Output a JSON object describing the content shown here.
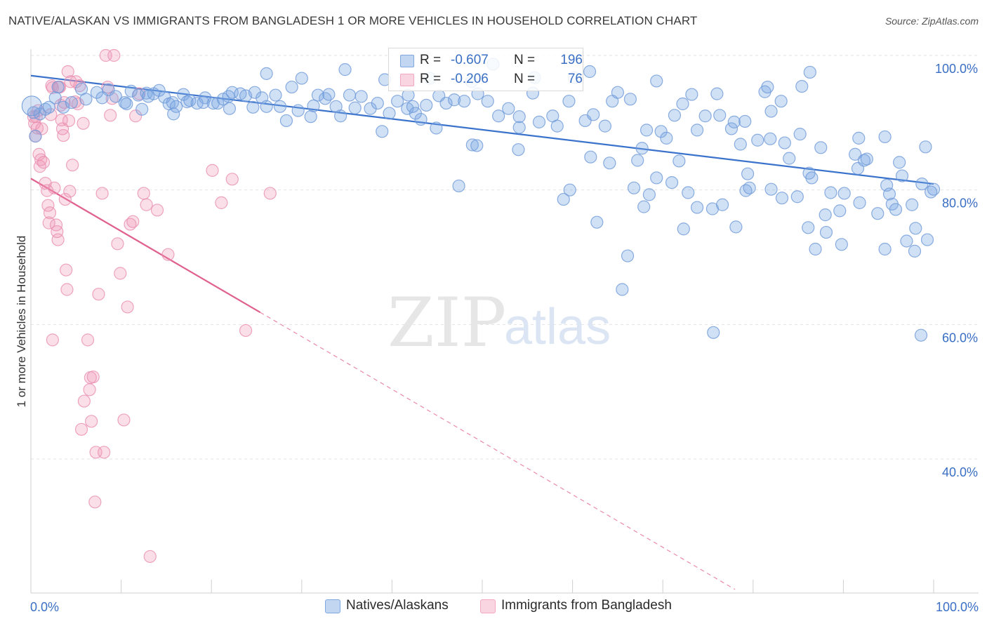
{
  "title": "NATIVE/ALASKAN VS IMMIGRANTS FROM BANGLADESH 1 OR MORE VEHICLES IN HOUSEHOLD CORRELATION CHART",
  "source": "Source: ZipAtlas.com",
  "watermark": {
    "zip": "ZIP",
    "atlas": "atlas"
  },
  "legend_stats": {
    "rows": [
      {
        "r_label": "R =",
        "r_value": "-0.607",
        "n_label": "N =",
        "n_value": "196",
        "color": "#7fa8e0"
      },
      {
        "r_label": "R =",
        "r_value": "-0.206",
        "n_label": "N =",
        "n_value": "76",
        "color": "#f2a6bf"
      }
    ]
  },
  "colors": {
    "blue": "#5b8fd6",
    "pink": "#e87fa5",
    "blue_fill": "rgba(120,165,225,0.35)",
    "pink_fill": "rgba(240,150,180,0.30)",
    "grid": "#e3e3e3",
    "tick_label": "#3a6fc4"
  },
  "chart_data": {
    "type": "scatter",
    "title": "NATIVE/ALASKAN VS IMMIGRANTS FROM BANGLADESH 1 OR MORE VEHICLES IN HOUSEHOLD CORRELATION CHART",
    "xlabel": "",
    "ylabel": "1 or more Vehicles in Household",
    "xlim": [
      0,
      100
    ],
    "ylim": [
      20,
      101
    ],
    "x_tick_labels": [
      "0.0%",
      "100.0%"
    ],
    "y_ticks": [
      40,
      60,
      80,
      100
    ],
    "y_tick_labels": [
      "40.0%",
      "60.0%",
      "80.0%",
      "100.0%"
    ],
    "grid": true,
    "legend_position": "bottom",
    "series": [
      {
        "name": "Natives/Alaskans",
        "color": "#5b8fd6",
        "trend": {
          "x": [
            0,
            100
          ],
          "y": [
            97.0,
            80.9
          ]
        },
        "points": [
          [
            0.3,
            91.5
          ],
          [
            0.5,
            88.0
          ],
          [
            1.0,
            91.3
          ],
          [
            1.6,
            92.0
          ],
          [
            2.0,
            92.3
          ],
          [
            2.7,
            93.7
          ],
          [
            3.0,
            95.3
          ],
          [
            3.6,
            92.3
          ],
          [
            4.5,
            93.0
          ],
          [
            5.6,
            95.0
          ],
          [
            6.1,
            93.5
          ],
          [
            7.3,
            94.5
          ],
          [
            7.9,
            93.7
          ],
          [
            8.6,
            94.9
          ],
          [
            9.4,
            93.9
          ],
          [
            10.4,
            93.0
          ],
          [
            10.6,
            92.8
          ],
          [
            11.1,
            94.7
          ],
          [
            11.9,
            94.1
          ],
          [
            12.3,
            92.0
          ],
          [
            12.8,
            94.4
          ],
          [
            13.0,
            93.9
          ],
          [
            13.6,
            94.3
          ],
          [
            14.2,
            94.8
          ],
          [
            14.8,
            93.8
          ],
          [
            15.3,
            92.8
          ],
          [
            15.7,
            93.0
          ],
          [
            15.8,
            91.3
          ],
          [
            16.1,
            92.4
          ],
          [
            16.9,
            94.2
          ],
          [
            17.3,
            93.1
          ],
          [
            17.6,
            93.3
          ],
          [
            18.4,
            92.9
          ],
          [
            19.3,
            93.7
          ],
          [
            19.1,
            93.0
          ],
          [
            20.2,
            92.9
          ],
          [
            20.7,
            92.9
          ],
          [
            21.3,
            93.5
          ],
          [
            21.9,
            93.9
          ],
          [
            22.0,
            92.1
          ],
          [
            22.3,
            94.5
          ],
          [
            23.2,
            94.3
          ],
          [
            23.8,
            94.0
          ],
          [
            24.6,
            92.3
          ],
          [
            24.8,
            94.5
          ],
          [
            25.6,
            93.7
          ],
          [
            26.1,
            92.4
          ],
          [
            26.1,
            97.3
          ],
          [
            27.1,
            94.1
          ],
          [
            27.6,
            92.4
          ],
          [
            28.3,
            90.3
          ],
          [
            28.9,
            95.3
          ],
          [
            29.6,
            91.8
          ],
          [
            30.0,
            96.6
          ],
          [
            31.3,
            92.5
          ],
          [
            31.0,
            90.9
          ],
          [
            31.8,
            94.1
          ],
          [
            32.6,
            93.6
          ],
          [
            33.0,
            94.2
          ],
          [
            33.8,
            92.4
          ],
          [
            34.3,
            91.0
          ],
          [
            34.8,
            97.9
          ],
          [
            35.3,
            94.1
          ],
          [
            35.9,
            92.2
          ],
          [
            36.6,
            93.9
          ],
          [
            37.6,
            92.1
          ],
          [
            38.4,
            92.9
          ],
          [
            39.2,
            96.4
          ],
          [
            39.7,
            91.4
          ],
          [
            40.6,
            93.2
          ],
          [
            41.7,
            92.1
          ],
          [
            41.8,
            94.1
          ],
          [
            42.3,
            92.4
          ],
          [
            43.2,
            90.5
          ],
          [
            43.8,
            92.6
          ],
          [
            44.2,
            96.6
          ],
          [
            45.2,
            94.0
          ],
          [
            46.0,
            92.9
          ],
          [
            46.9,
            93.4
          ],
          [
            48.0,
            93.2
          ],
          [
            48.8,
            96.1
          ],
          [
            48.9,
            86.7
          ],
          [
            49.5,
            94.3
          ],
          [
            50.6,
            93.2
          ],
          [
            51.2,
            98.7
          ],
          [
            51.8,
            91.0
          ],
          [
            52.9,
            92.1
          ],
          [
            54.1,
            89.3
          ],
          [
            54.1,
            90.9
          ],
          [
            55.6,
            94.4
          ],
          [
            55.8,
            96.7
          ],
          [
            57.8,
            91.0
          ],
          [
            58.3,
            89.5
          ],
          [
            59.6,
            93.2
          ],
          [
            60.2,
            96.7
          ],
          [
            61.4,
            90.3
          ],
          [
            61.9,
            97.6
          ],
          [
            62.3,
            91.2
          ],
          [
            63.6,
            89.5
          ],
          [
            64.4,
            93.2
          ],
          [
            65.0,
            94.5
          ],
          [
            66.4,
            93.5
          ],
          [
            67.2,
            84.4
          ],
          [
            67.7,
            86.2
          ],
          [
            68.2,
            88.9
          ],
          [
            69.3,
            96.2
          ],
          [
            69.8,
            88.7
          ],
          [
            70.4,
            87.7
          ],
          [
            71.3,
            91.1
          ],
          [
            71.8,
            84.3
          ],
          [
            72.2,
            92.8
          ],
          [
            73.2,
            94.2
          ],
          [
            73.8,
            88.9
          ],
          [
            74.7,
            91.0
          ],
          [
            76.0,
            94.3
          ],
          [
            76.3,
            91.1
          ],
          [
            77.6,
            89.1
          ],
          [
            77.9,
            90.1
          ],
          [
            78.6,
            86.8
          ],
          [
            79.1,
            90.2
          ],
          [
            79.4,
            82.4
          ],
          [
            80.5,
            87.4
          ],
          [
            81.3,
            94.6
          ],
          [
            81.6,
            95.3
          ],
          [
            81.9,
            87.6
          ],
          [
            82.0,
            91.7
          ],
          [
            83.1,
            93.2
          ],
          [
            83.5,
            87.0
          ],
          [
            84.0,
            84.7
          ],
          [
            85.2,
            88.3
          ],
          [
            85.4,
            95.4
          ],
          [
            86.2,
            82.5
          ],
          [
            86.3,
            97.5
          ],
          [
            86.5,
            81.8
          ],
          [
            87.5,
            86.3
          ],
          [
            88.0,
            76.3
          ],
          [
            88.6,
            79.6
          ],
          [
            89.6,
            76.9
          ],
          [
            90.1,
            79.5
          ],
          [
            91.3,
            85.3
          ],
          [
            91.6,
            83.2
          ],
          [
            91.7,
            87.7
          ],
          [
            91.8,
            78.1
          ],
          [
            92.3,
            84.4
          ],
          [
            92.6,
            84.6
          ],
          [
            94.6,
            87.9
          ],
          [
            94.8,
            80.7
          ],
          [
            95.1,
            79.4
          ],
          [
            95.4,
            77.9
          ],
          [
            96.5,
            82.1
          ],
          [
            97.6,
            77.8
          ],
          [
            98.0,
            74.3
          ],
          [
            99.3,
            72.6
          ],
          [
            98.7,
            80.9
          ],
          [
            99.1,
            86.4
          ],
          [
            99.7,
            79.7
          ],
          [
            100.0,
            80.1
          ],
          [
            98.6,
            58.4
          ],
          [
            42.6,
            91.4
          ],
          [
            38.9,
            88.7
          ],
          [
            44.9,
            89.2
          ],
          [
            49.4,
            86.6
          ],
          [
            47.4,
            80.6
          ],
          [
            54.0,
            86.0
          ],
          [
            56.3,
            90.1
          ],
          [
            59.0,
            78.6
          ],
          [
            59.7,
            80.0
          ],
          [
            62.0,
            84.9
          ],
          [
            62.7,
            75.2
          ],
          [
            64.1,
            84.0
          ],
          [
            65.5,
            65.2
          ],
          [
            66.1,
            70.2
          ],
          [
            66.8,
            80.3
          ],
          [
            67.9,
            77.5
          ],
          [
            68.5,
            79.3
          ],
          [
            69.3,
            81.8
          ],
          [
            71.0,
            81.1
          ],
          [
            72.3,
            74.2
          ],
          [
            72.8,
            79.6
          ],
          [
            73.8,
            77.4
          ],
          [
            75.5,
            77.2
          ],
          [
            75.6,
            58.8
          ],
          [
            76.6,
            77.8
          ],
          [
            78.1,
            74.5
          ],
          [
            79.2,
            79.9
          ],
          [
            79.6,
            80.3
          ],
          [
            82.0,
            80.1
          ],
          [
            83.2,
            78.8
          ],
          [
            84.9,
            79.0
          ],
          [
            86.9,
            71.2
          ],
          [
            86.1,
            74.4
          ],
          [
            88.1,
            73.7
          ],
          [
            89.8,
            71.9
          ],
          [
            93.8,
            76.5
          ],
          [
            94.6,
            71.2
          ],
          [
            95.8,
            77.1
          ],
          [
            97.0,
            72.4
          ],
          [
            96.2,
            84.1
          ],
          [
            97.9,
            70.9
          ]
        ]
      },
      {
        "name": "Immigrants from Bangladesh",
        "color": "#e87fa5",
        "trend": {
          "x": [
            0,
            25.4
          ],
          "y": [
            81.7,
            61.8
          ]
        },
        "trend_extension": {
          "x": [
            25.4,
            78.0
          ],
          "y": [
            61.8,
            20.6
          ]
        },
        "points": [
          [
            0.3,
            90.9
          ],
          [
            0.4,
            89.9
          ],
          [
            0.5,
            88.0
          ],
          [
            0.6,
            90.9
          ],
          [
            0.7,
            89.2
          ],
          [
            0.8,
            91.8
          ],
          [
            0.9,
            85.3
          ],
          [
            1.0,
            83.5
          ],
          [
            1.1,
            84.5
          ],
          [
            1.2,
            89.1
          ],
          [
            1.4,
            84.1
          ],
          [
            1.6,
            81.0
          ],
          [
            1.8,
            79.9
          ],
          [
            1.9,
            77.7
          ],
          [
            2.0,
            75.1
          ],
          [
            2.1,
            76.6
          ],
          [
            2.2,
            91.2
          ],
          [
            2.3,
            95.5
          ],
          [
            2.4,
            95.2
          ],
          [
            2.6,
            80.3
          ],
          [
            2.8,
            74.8
          ],
          [
            2.9,
            73.8
          ],
          [
            3.0,
            72.6
          ],
          [
            3.1,
            95.3
          ],
          [
            3.2,
            95.3
          ],
          [
            3.3,
            92.6
          ],
          [
            3.4,
            90.4
          ],
          [
            3.5,
            89.1
          ],
          [
            3.6,
            88.1
          ],
          [
            3.7,
            93.0
          ],
          [
            3.8,
            78.6
          ],
          [
            3.9,
            68.1
          ],
          [
            4.0,
            65.2
          ],
          [
            4.1,
            97.6
          ],
          [
            4.2,
            90.3
          ],
          [
            4.3,
            79.8
          ],
          [
            4.4,
            96.1
          ],
          [
            4.6,
            83.7
          ],
          [
            4.9,
            93.1
          ],
          [
            5.0,
            96.1
          ],
          [
            5.2,
            92.8
          ],
          [
            5.4,
            95.5
          ],
          [
            5.8,
            89.9
          ],
          [
            5.6,
            44.4
          ],
          [
            5.9,
            48.6
          ],
          [
            6.3,
            57.7
          ],
          [
            6.5,
            50.3
          ],
          [
            6.6,
            52.1
          ],
          [
            6.7,
            45.6
          ],
          [
            6.9,
            52.2
          ],
          [
            7.1,
            33.6
          ],
          [
            7.2,
            41.0
          ],
          [
            7.5,
            64.5
          ],
          [
            7.9,
            79.5
          ],
          [
            8.1,
            41.0
          ],
          [
            8.3,
            100.0
          ],
          [
            8.5,
            95.3
          ],
          [
            8.8,
            91.1
          ],
          [
            9.0,
            93.6
          ],
          [
            9.2,
            100.0
          ],
          [
            9.6,
            72.0
          ],
          [
            9.9,
            67.6
          ],
          [
            10.3,
            45.8
          ],
          [
            10.7,
            62.6
          ],
          [
            11.0,
            74.9
          ],
          [
            11.3,
            75.3
          ],
          [
            11.6,
            91.0
          ],
          [
            12.0,
            94.3
          ],
          [
            12.5,
            79.5
          ],
          [
            12.8,
            77.8
          ],
          [
            13.2,
            25.5
          ],
          [
            14.0,
            77.0
          ],
          [
            15.2,
            70.4
          ],
          [
            20.1,
            82.9
          ],
          [
            21.1,
            78.1
          ],
          [
            22.3,
            81.6
          ],
          [
            23.8,
            59.1
          ],
          [
            26.5,
            79.5
          ],
          [
            2.4,
            57.7
          ]
        ]
      }
    ]
  }
}
